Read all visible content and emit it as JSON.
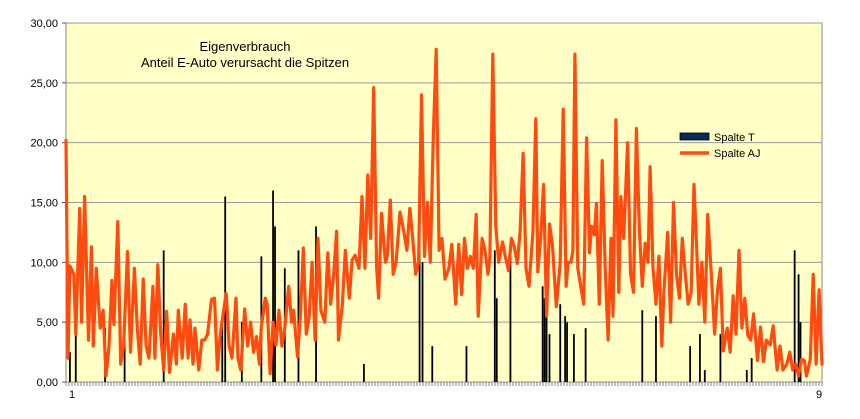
{
  "chart_data": {
    "type": "bar+line",
    "title": "Eigenverbrauch",
    "subtitle": "Anteil E-Auto verursacht die Spitzen",
    "xlabel": "",
    "ylabel": "",
    "ylim": [
      0,
      30
    ],
    "yticks": [
      "0,00",
      "5,00",
      "10,00",
      "15,00",
      "20,00",
      "25,00",
      "30,00"
    ],
    "xtick_labels": [
      "1",
      "9"
    ],
    "grid": true,
    "legend_position": "right",
    "background": "#ffffc6",
    "series": [
      {
        "name": "Spalte T",
        "kind": "bar",
        "color": "#0a2a5a",
        "points": [
          [
            4,
            2.5
          ],
          [
            10,
            4
          ],
          [
            40,
            4.5
          ],
          [
            60,
            3.5
          ],
          [
            100,
            11
          ],
          [
            160,
            5.5
          ],
          [
            163,
            15.5
          ],
          [
            180,
            5
          ],
          [
            200,
            10.5
          ],
          [
            212,
            16
          ],
          [
            214,
            13
          ],
          [
            224,
            9.5
          ],
          [
            238,
            11
          ],
          [
            256,
            13
          ],
          [
            305,
            1.5
          ],
          [
            362,
            11
          ],
          [
            365,
            10
          ],
          [
            375,
            3
          ],
          [
            410,
            3
          ],
          [
            439,
            11
          ],
          [
            441,
            7
          ],
          [
            455,
            10.5
          ],
          [
            488,
            8
          ],
          [
            490,
            7
          ],
          [
            492,
            5.5
          ],
          [
            495,
            4
          ],
          [
            506,
            6.5
          ],
          [
            511,
            5.5
          ],
          [
            513,
            5
          ],
          [
            520,
            4
          ],
          [
            532,
            4.5
          ],
          [
            590,
            6
          ],
          [
            604,
            5.5
          ],
          [
            639,
            3
          ],
          [
            649,
            4
          ],
          [
            654,
            1
          ],
          [
            670,
            4
          ],
          [
            697,
            1
          ],
          [
            702,
            2
          ],
          [
            746,
            11
          ],
          [
            750,
            9
          ],
          [
            752,
            5
          ]
        ]
      },
      {
        "name": "Spalte AJ",
        "kind": "line",
        "color": "#ff4a10",
        "points": [
          [
            0,
            20.2
          ],
          [
            2,
            2
          ],
          [
            4,
            9.7
          ],
          [
            8,
            9
          ],
          [
            10,
            4
          ],
          [
            14,
            14.5
          ],
          [
            16,
            5
          ],
          [
            19,
            15.5
          ],
          [
            23,
            3.5
          ],
          [
            26,
            11.3
          ],
          [
            28,
            3
          ],
          [
            31,
            9.5
          ],
          [
            35,
            4.5
          ],
          [
            38,
            6
          ],
          [
            41,
            0.5
          ],
          [
            44,
            3
          ],
          [
            47,
            8.5
          ],
          [
            49,
            4.8
          ],
          [
            53,
            13.4
          ],
          [
            56,
            1.5
          ],
          [
            59,
            3
          ],
          [
            63,
            10.9
          ],
          [
            66,
            2.5
          ],
          [
            70,
            9.5
          ],
          [
            73,
            4.5
          ],
          [
            76,
            1.5
          ],
          [
            79,
            8.6
          ],
          [
            82,
            3
          ],
          [
            85,
            2
          ],
          [
            89,
            8
          ],
          [
            91,
            2
          ],
          [
            94,
            9.8
          ],
          [
            97,
            4
          ],
          [
            100,
            1
          ],
          [
            103,
            5.9
          ],
          [
            106,
            0.8
          ],
          [
            110,
            4
          ],
          [
            113,
            1.5
          ],
          [
            115,
            6
          ],
          [
            119,
            2
          ],
          [
            122,
            6.5
          ],
          [
            125,
            2
          ],
          [
            127,
            5.2
          ],
          [
            130,
            1.5
          ],
          [
            132,
            4.5
          ],
          [
            136,
            1
          ],
          [
            139,
            3.5
          ],
          [
            142,
            3.5
          ],
          [
            145,
            4
          ],
          [
            149,
            6.9
          ],
          [
            152,
            7
          ],
          [
            155,
            1
          ],
          [
            158,
            4
          ],
          [
            161,
            5.8
          ],
          [
            164,
            7.4
          ],
          [
            167,
            3
          ],
          [
            170,
            2
          ],
          [
            174,
            7
          ],
          [
            176,
            2
          ],
          [
            179,
            1
          ],
          [
            183,
            6.1
          ],
          [
            186,
            3
          ],
          [
            189,
            5
          ],
          [
            192,
            2.5
          ],
          [
            195,
            3.8
          ],
          [
            198,
            1.5
          ],
          [
            200,
            4.6
          ],
          [
            204,
            7
          ],
          [
            206,
            6.5
          ],
          [
            209,
            0.7
          ],
          [
            212,
            5
          ],
          [
            215,
            3.1
          ],
          [
            218,
            6
          ],
          [
            221,
            3
          ],
          [
            224,
            4.5
          ],
          [
            228,
            8
          ],
          [
            231,
            5
          ],
          [
            233,
            6
          ],
          [
            237,
            2.1
          ],
          [
            240,
            5.5
          ],
          [
            243,
            11.2
          ],
          [
            246,
            4
          ],
          [
            249,
            5.5
          ],
          [
            252,
            10
          ],
          [
            255,
            3.5
          ],
          [
            258,
            12
          ],
          [
            261,
            6
          ],
          [
            265,
            5
          ],
          [
            268,
            10.8
          ],
          [
            271,
            6.5
          ],
          [
            274,
            8.9
          ],
          [
            277,
            12.6
          ],
          [
            279,
            3.5
          ],
          [
            283,
            6.5
          ],
          [
            286,
            11
          ],
          [
            290,
            7
          ],
          [
            293,
            10.2
          ],
          [
            296,
            10.6
          ],
          [
            300,
            9.5
          ],
          [
            303,
            15.5
          ],
          [
            306,
            9.5
          ],
          [
            309,
            17.3
          ],
          [
            312,
            12
          ],
          [
            315,
            24.6
          ],
          [
            318,
            9.6
          ],
          [
            320,
            7
          ],
          [
            323,
            14.1
          ],
          [
            327,
            10
          ],
          [
            329,
            10.5
          ],
          [
            332,
            15.2
          ],
          [
            335,
            9
          ],
          [
            338,
            10
          ],
          [
            342,
            14.2
          ],
          [
            346,
            12.5
          ],
          [
            349,
            11
          ],
          [
            352,
            14.5
          ],
          [
            355,
            12
          ],
          [
            358,
            9
          ],
          [
            361,
            10
          ],
          [
            364,
            24
          ],
          [
            367,
            10.5
          ],
          [
            370,
            15
          ],
          [
            373,
            10
          ],
          [
            376,
            20.5
          ],
          [
            379,
            27.8
          ],
          [
            382,
            11
          ],
          [
            385,
            12
          ],
          [
            388,
            8.6
          ],
          [
            392,
            9.5
          ],
          [
            395,
            11.5
          ],
          [
            399,
            6.5
          ],
          [
            402,
            11.5
          ],
          [
            405,
            7.3
          ],
          [
            408,
            12
          ],
          [
            411,
            9.5
          ],
          [
            414,
            10.5
          ],
          [
            417,
            9.5
          ],
          [
            420,
            14
          ],
          [
            422,
            5.5
          ],
          [
            426,
            12
          ],
          [
            429,
            11
          ],
          [
            432,
            9
          ],
          [
            434,
            10.5
          ],
          [
            437,
            27.4
          ],
          [
            440,
            13
          ],
          [
            443,
            10
          ],
          [
            447,
            11.7
          ],
          [
            450,
            10.4
          ],
          [
            453,
            9.3
          ],
          [
            456,
            12
          ],
          [
            459,
            11.3
          ],
          [
            462,
            9.9
          ],
          [
            465,
            12.7
          ],
          [
            468,
            19.1
          ],
          [
            471,
            9.5
          ],
          [
            474,
            8
          ],
          [
            478,
            12.5
          ],
          [
            481,
            22
          ],
          [
            483,
            9.2
          ],
          [
            486,
            12
          ],
          [
            489,
            16.5
          ],
          [
            492,
            5.5
          ],
          [
            495,
            13.2
          ],
          [
            498,
            11.5
          ],
          [
            502,
            6.3
          ],
          [
            506,
            10
          ],
          [
            509,
            22.8
          ],
          [
            512,
            8
          ],
          [
            514,
            10
          ],
          [
            517,
            10
          ],
          [
            519,
            11
          ],
          [
            521,
            27.4
          ],
          [
            524,
            9.5
          ],
          [
            527,
            8
          ],
          [
            530,
            6.5
          ],
          [
            533,
            20.4
          ],
          [
            536,
            10.8
          ],
          [
            538,
            13
          ],
          [
            541,
            12.3
          ],
          [
            543,
            14.9
          ],
          [
            546,
            6.5
          ],
          [
            549,
            18.5
          ],
          [
            552,
            9.5
          ],
          [
            555,
            3.5
          ],
          [
            558,
            12
          ],
          [
            560,
            5.5
          ],
          [
            563,
            21.9
          ],
          [
            566,
            7.5
          ],
          [
            568,
            15.5
          ],
          [
            571,
            12
          ],
          [
            575,
            20
          ],
          [
            578,
            9
          ],
          [
            581,
            7.5
          ],
          [
            584,
            21.2
          ],
          [
            587,
            12.8
          ],
          [
            590,
            8
          ],
          [
            593,
            11.6
          ],
          [
            596,
            10
          ],
          [
            598,
            18
          ],
          [
            601,
            9.5
          ],
          [
            604,
            6.5
          ],
          [
            607,
            10.5
          ],
          [
            610,
            3
          ],
          [
            612,
            7.4
          ],
          [
            616,
            12.5
          ],
          [
            619,
            5
          ],
          [
            622,
            15
          ],
          [
            625,
            9
          ],
          [
            628,
            7
          ],
          [
            631,
            12
          ],
          [
            634,
            9
          ],
          [
            637,
            6.5
          ],
          [
            640,
            7.4
          ],
          [
            643,
            16.5
          ],
          [
            646,
            10.5
          ],
          [
            648,
            6.5
          ],
          [
            651,
            10
          ],
          [
            654,
            5
          ],
          [
            657,
            14
          ],
          [
            661,
            8.6
          ],
          [
            664,
            4
          ],
          [
            667,
            7.7
          ],
          [
            670,
            9.5
          ],
          [
            673,
            2.6
          ],
          [
            677,
            4.5
          ],
          [
            680,
            2.5
          ],
          [
            683,
            7.2
          ],
          [
            686,
            4
          ],
          [
            689,
            11
          ],
          [
            692,
            4.5
          ],
          [
            695,
            7
          ],
          [
            698,
            3.9
          ],
          [
            701,
            3.5
          ],
          [
            704,
            5.7
          ],
          [
            708,
            1.8
          ],
          [
            711,
            4.6
          ],
          [
            714,
            1.7
          ],
          [
            717,
            3.5
          ],
          [
            721,
            3.1
          ],
          [
            724,
            4.7
          ],
          [
            728,
            1
          ],
          [
            731,
            3
          ],
          [
            734,
            1
          ],
          [
            738,
            1.5
          ],
          [
            741,
            2.5
          ],
          [
            744,
            1
          ],
          [
            747,
            1.5
          ],
          [
            750,
            0.5
          ],
          [
            753,
            1.9
          ],
          [
            756,
            1.8
          ],
          [
            758,
            0.5
          ],
          [
            762,
            1.9
          ],
          [
            765,
            9
          ],
          [
            768,
            1.5
          ],
          [
            771,
            7.7
          ],
          [
            774,
            1.5
          ]
        ]
      }
    ]
  }
}
